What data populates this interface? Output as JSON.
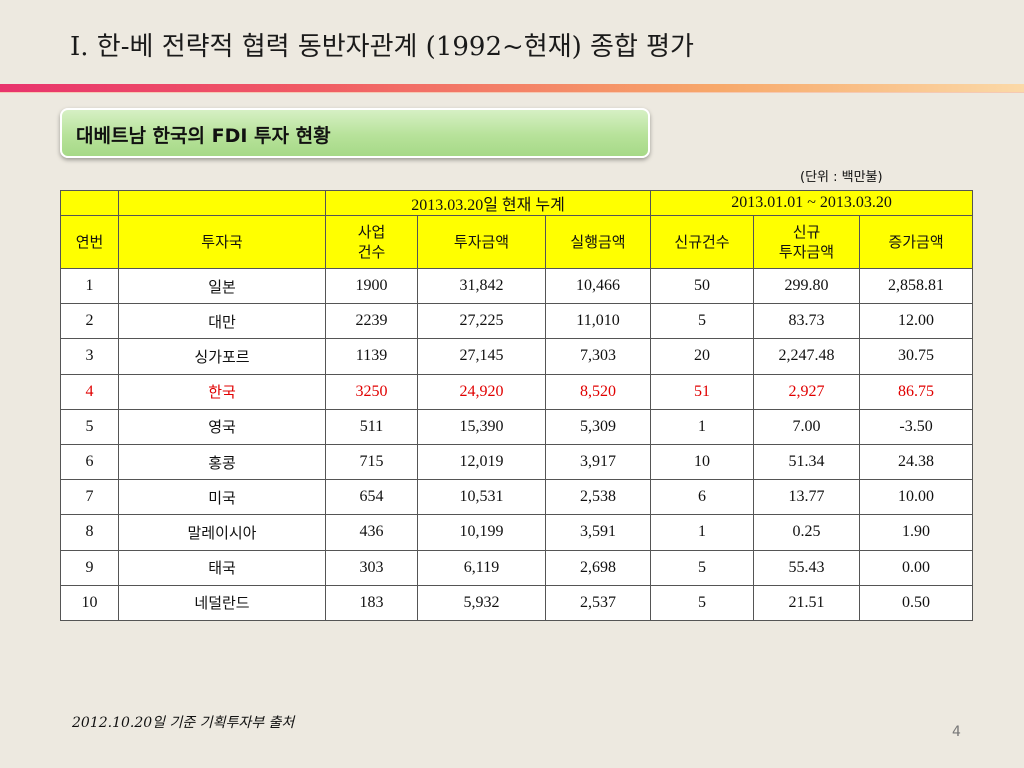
{
  "slide": {
    "title": "I. 한-베 전략적 협력 동반자관계 (1992~현재) 종합 평가",
    "subtitle": "대베트남 한국의 FDI 투자 현황",
    "unit": "(단위 : 백만불)",
    "footer": "2012.10.20일 기준 기획투자부 출처",
    "page_number": "4"
  },
  "table": {
    "group_headers": {
      "cumulative": "2013.03.20일 현재 누계",
      "period": "2013.01.01 ~ 2013.03.20"
    },
    "columns": [
      "연번",
      "투자국",
      "사업\n건수",
      "투자금액",
      "실행금액",
      "신규건수",
      "신규\n투자금액",
      "증가금액"
    ],
    "rows": [
      [
        "1",
        "일본",
        "1900",
        "31,842",
        "10,466",
        "50",
        "299.80",
        "2,858.81"
      ],
      [
        "2",
        "대만",
        "2239",
        "27,225",
        "11,010",
        "5",
        "83.73",
        "12.00"
      ],
      [
        "3",
        "싱가포르",
        "1139",
        "27,145",
        "7,303",
        "20",
        "2,247.48",
        "30.75"
      ],
      [
        "4",
        "한국",
        "3250",
        "24,920",
        "8,520",
        "51",
        "2,927",
        "86.75"
      ],
      [
        "5",
        "영국",
        "511",
        "15,390",
        "5,309",
        "1",
        "7.00",
        "-3.50"
      ],
      [
        "6",
        "홍콩",
        "715",
        "12,019",
        "3,917",
        "10",
        "51.34",
        "24.38"
      ],
      [
        "7",
        "미국",
        "654",
        "10,531",
        "2,538",
        "6",
        "13.77",
        "10.00"
      ],
      [
        "8",
        "말레이시아",
        "436",
        "10,199",
        "3,591",
        "1",
        "0.25",
        "1.90"
      ],
      [
        "9",
        "태국",
        "303",
        "6,119",
        "2,698",
        "5",
        "55.43",
        "0.00"
      ],
      [
        "10",
        "네덜란드",
        "183",
        "5,932",
        "2,537",
        "5",
        "21.51",
        "0.50"
      ]
    ],
    "highlight_row_index": 3,
    "highlight_color": "#e00000",
    "header_color": "#ffff00"
  }
}
